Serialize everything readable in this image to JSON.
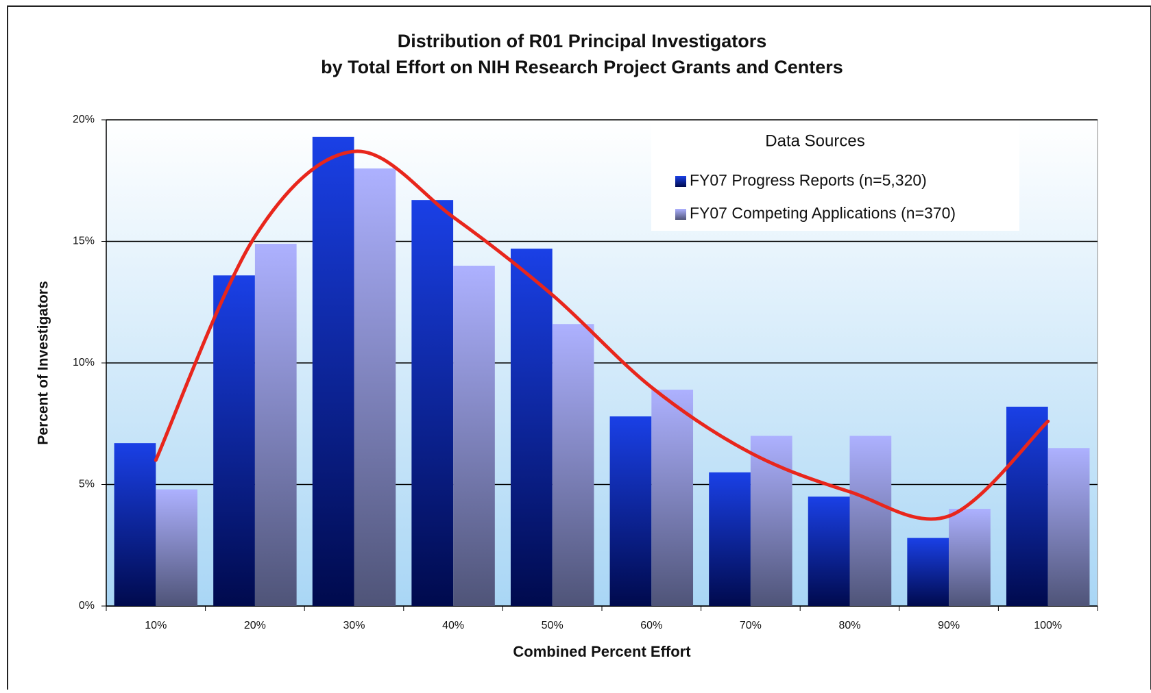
{
  "chart_data": {
    "type": "bar",
    "title": "Distribution of R01 Principal Investigators",
    "subtitle": "by Total Effort on NIH Research Project Grants and Centers",
    "xlabel": "Combined Percent Effort",
    "ylabel": "Percent of Investigators",
    "legend_title": "Data Sources",
    "legend": "top-right",
    "categories": [
      "10%",
      "20%",
      "30%",
      "40%",
      "50%",
      "60%",
      "70%",
      "80%",
      "90%",
      "100%"
    ],
    "series": [
      {
        "name": "FY07 Progress Reports (n=5,320)",
        "color": "#1437e0",
        "values": [
          6.7,
          13.6,
          19.3,
          16.7,
          14.7,
          7.8,
          5.5,
          4.5,
          2.8,
          8.2
        ]
      },
      {
        "name": "FY07 Competing Applications (n=370)",
        "color": "#a9adff",
        "values": [
          4.8,
          14.9,
          18.0,
          14.0,
          11.6,
          8.9,
          7.0,
          7.0,
          4.0,
          6.5
        ]
      }
    ],
    "trend": {
      "color": "#e8261c",
      "values": [
        6.0,
        15.2,
        18.7,
        16.0,
        12.8,
        9.0,
        6.3,
        4.7,
        3.7,
        7.6
      ]
    },
    "ylim": [
      0,
      20
    ],
    "yticks": [
      {
        "value": 0,
        "label": "0%"
      },
      {
        "value": 5,
        "label": "5%"
      },
      {
        "value": 10,
        "label": "10%"
      },
      {
        "value": 15,
        "label": "15%"
      },
      {
        "value": 20,
        "label": "20%"
      }
    ],
    "grid": true
  }
}
